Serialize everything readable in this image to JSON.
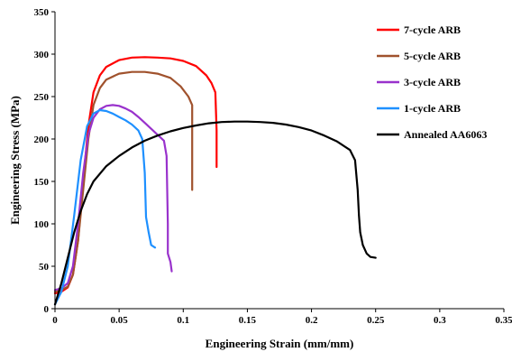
{
  "chart_data": {
    "type": "line",
    "title": "",
    "xlabel": "Engineering Strain (mm/mm)",
    "ylabel": "Engineering Stress (MPa)",
    "xlim": [
      0,
      0.35
    ],
    "ylim": [
      0,
      350
    ],
    "xticks": [
      0,
      0.05,
      0.1,
      0.15,
      0.2,
      0.25,
      0.3,
      0.35
    ],
    "xtick_labels": [
      "0",
      "0.05",
      "0.1",
      "0.15",
      "0.2",
      "0.25",
      "0.3",
      "0.35"
    ],
    "yticks": [
      0,
      50,
      100,
      150,
      200,
      250,
      300,
      350
    ],
    "ytick_labels": [
      "0",
      "50",
      "100",
      "150",
      "200",
      "250",
      "300",
      "350"
    ],
    "grid": false,
    "legend_position": "top-right",
    "series": [
      {
        "name": "7-cycle ARB",
        "color": "#ff0000",
        "points": [
          [
            0,
            18
          ],
          [
            0.005,
            20
          ],
          [
            0.01,
            25
          ],
          [
            0.014,
            40
          ],
          [
            0.018,
            80
          ],
          [
            0.022,
            150
          ],
          [
            0.026,
            215
          ],
          [
            0.03,
            255
          ],
          [
            0.035,
            275
          ],
          [
            0.04,
            285
          ],
          [
            0.05,
            293
          ],
          [
            0.06,
            296
          ],
          [
            0.07,
            296.5
          ],
          [
            0.08,
            296
          ],
          [
            0.09,
            295
          ],
          [
            0.1,
            292
          ],
          [
            0.11,
            286
          ],
          [
            0.118,
            275
          ],
          [
            0.122,
            266
          ],
          [
            0.125,
            255
          ],
          [
            0.126,
            210
          ],
          [
            0.126,
            167
          ]
        ]
      },
      {
        "name": "5-cycle ARB",
        "color": "#a0522d",
        "points": [
          [
            0,
            20
          ],
          [
            0.005,
            22
          ],
          [
            0.01,
            26
          ],
          [
            0.014,
            40
          ],
          [
            0.018,
            80
          ],
          [
            0.022,
            140
          ],
          [
            0.026,
            200
          ],
          [
            0.03,
            240
          ],
          [
            0.035,
            260
          ],
          [
            0.04,
            270
          ],
          [
            0.05,
            277
          ],
          [
            0.06,
            279
          ],
          [
            0.07,
            279
          ],
          [
            0.08,
            277
          ],
          [
            0.09,
            272
          ],
          [
            0.098,
            262
          ],
          [
            0.104,
            250
          ],
          [
            0.107,
            240
          ],
          [
            0.107,
            190
          ],
          [
            0.107,
            140
          ]
        ]
      },
      {
        "name": "3-cycle ARB",
        "color": "#9932cc",
        "points": [
          [
            0,
            22
          ],
          [
            0.005,
            24
          ],
          [
            0.01,
            30
          ],
          [
            0.014,
            50
          ],
          [
            0.018,
            100
          ],
          [
            0.022,
            160
          ],
          [
            0.026,
            205
          ],
          [
            0.03,
            225
          ],
          [
            0.035,
            235
          ],
          [
            0.04,
            239
          ],
          [
            0.045,
            240
          ],
          [
            0.05,
            239
          ],
          [
            0.055,
            236
          ],
          [
            0.06,
            232
          ],
          [
            0.065,
            226
          ],
          [
            0.07,
            219
          ],
          [
            0.075,
            212
          ],
          [
            0.08,
            205
          ],
          [
            0.085,
            198
          ],
          [
            0.087,
            180
          ],
          [
            0.088,
            100
          ],
          [
            0.088,
            65
          ],
          [
            0.09,
            55
          ],
          [
            0.091,
            44
          ]
        ]
      },
      {
        "name": "1-cycle ARB",
        "color": "#1e90ff",
        "points": [
          [
            0,
            5
          ],
          [
            0.005,
            20
          ],
          [
            0.01,
            50
          ],
          [
            0.015,
            110
          ],
          [
            0.02,
            175
          ],
          [
            0.025,
            215
          ],
          [
            0.03,
            230
          ],
          [
            0.035,
            234
          ],
          [
            0.04,
            233
          ],
          [
            0.045,
            230
          ],
          [
            0.05,
            226
          ],
          [
            0.055,
            222
          ],
          [
            0.06,
            217
          ],
          [
            0.065,
            210
          ],
          [
            0.068,
            200
          ],
          [
            0.07,
            160
          ],
          [
            0.071,
            108
          ],
          [
            0.073,
            90
          ],
          [
            0.075,
            75
          ],
          [
            0.078,
            72
          ]
        ]
      },
      {
        "name": "Annealed AA6063",
        "color": "#000000",
        "points": [
          [
            0,
            5
          ],
          [
            0.005,
            30
          ],
          [
            0.01,
            60
          ],
          [
            0.015,
            90
          ],
          [
            0.02,
            115
          ],
          [
            0.025,
            135
          ],
          [
            0.03,
            150
          ],
          [
            0.04,
            168
          ],
          [
            0.05,
            180
          ],
          [
            0.06,
            190
          ],
          [
            0.07,
            198
          ],
          [
            0.08,
            204
          ],
          [
            0.09,
            209
          ],
          [
            0.1,
            213
          ],
          [
            0.11,
            216
          ],
          [
            0.12,
            218.5
          ],
          [
            0.13,
            220
          ],
          [
            0.14,
            220.5
          ],
          [
            0.15,
            220.5
          ],
          [
            0.16,
            220
          ],
          [
            0.17,
            219
          ],
          [
            0.18,
            217
          ],
          [
            0.19,
            214
          ],
          [
            0.2,
            210
          ],
          [
            0.21,
            204
          ],
          [
            0.22,
            197
          ],
          [
            0.23,
            187
          ],
          [
            0.234,
            175
          ],
          [
            0.236,
            140
          ],
          [
            0.237,
            110
          ],
          [
            0.238,
            90
          ],
          [
            0.24,
            75
          ],
          [
            0.243,
            65
          ],
          [
            0.246,
            61
          ],
          [
            0.25,
            60
          ]
        ]
      }
    ]
  }
}
